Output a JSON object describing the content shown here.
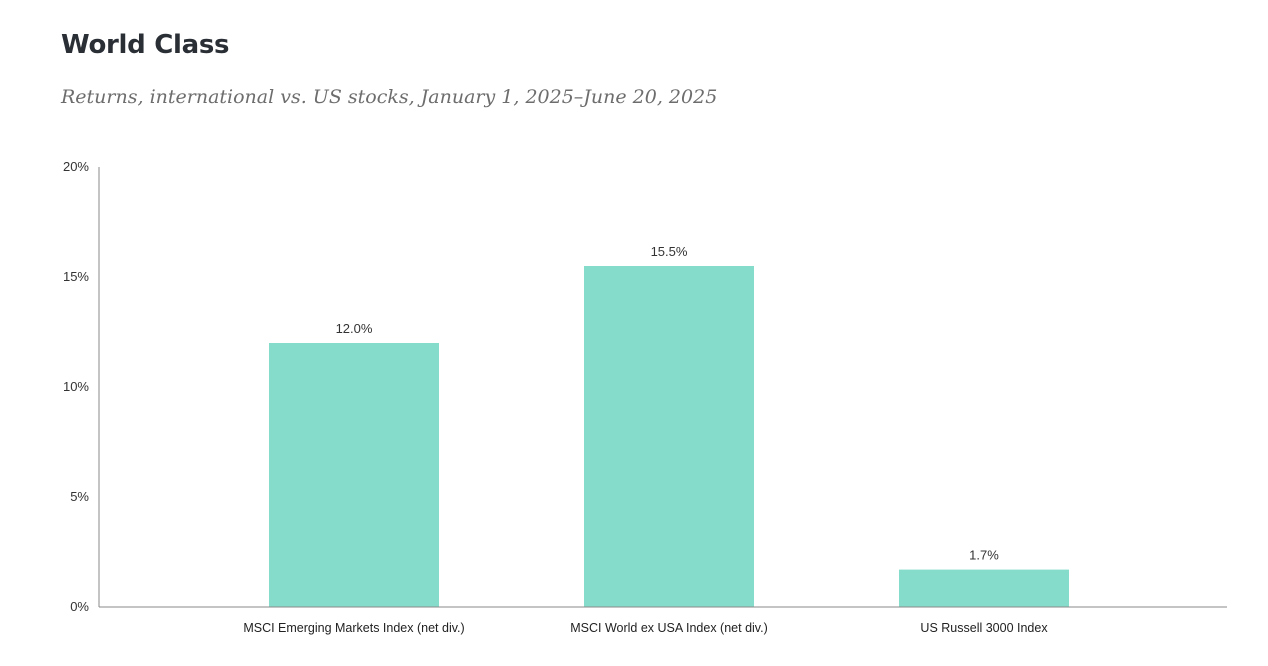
{
  "title": "World Class",
  "subtitle": "Returns, international vs. US stocks, January 1, 2025–June 20, 2025",
  "colors": {
    "bar": "#86dccb",
    "axis": "#8a8a8a"
  },
  "chart_data": {
    "type": "bar",
    "categories": [
      "MSCI Emerging Markets Index (net div.)",
      "MSCI World ex USA Index (net div.)",
      "US Russell 3000 Index"
    ],
    "values": [
      12.0,
      15.5,
      1.7
    ],
    "data_labels": [
      "12.0%",
      "15.5%",
      "1.7%"
    ],
    "ylim": [
      0,
      20
    ],
    "yticks": [
      0,
      5,
      10,
      15,
      20
    ],
    "ytick_labels": [
      "0%",
      "5%",
      "10%",
      "15%",
      "20%"
    ],
    "xlabel": "",
    "ylabel": "",
    "grid": false,
    "legend": "none"
  }
}
